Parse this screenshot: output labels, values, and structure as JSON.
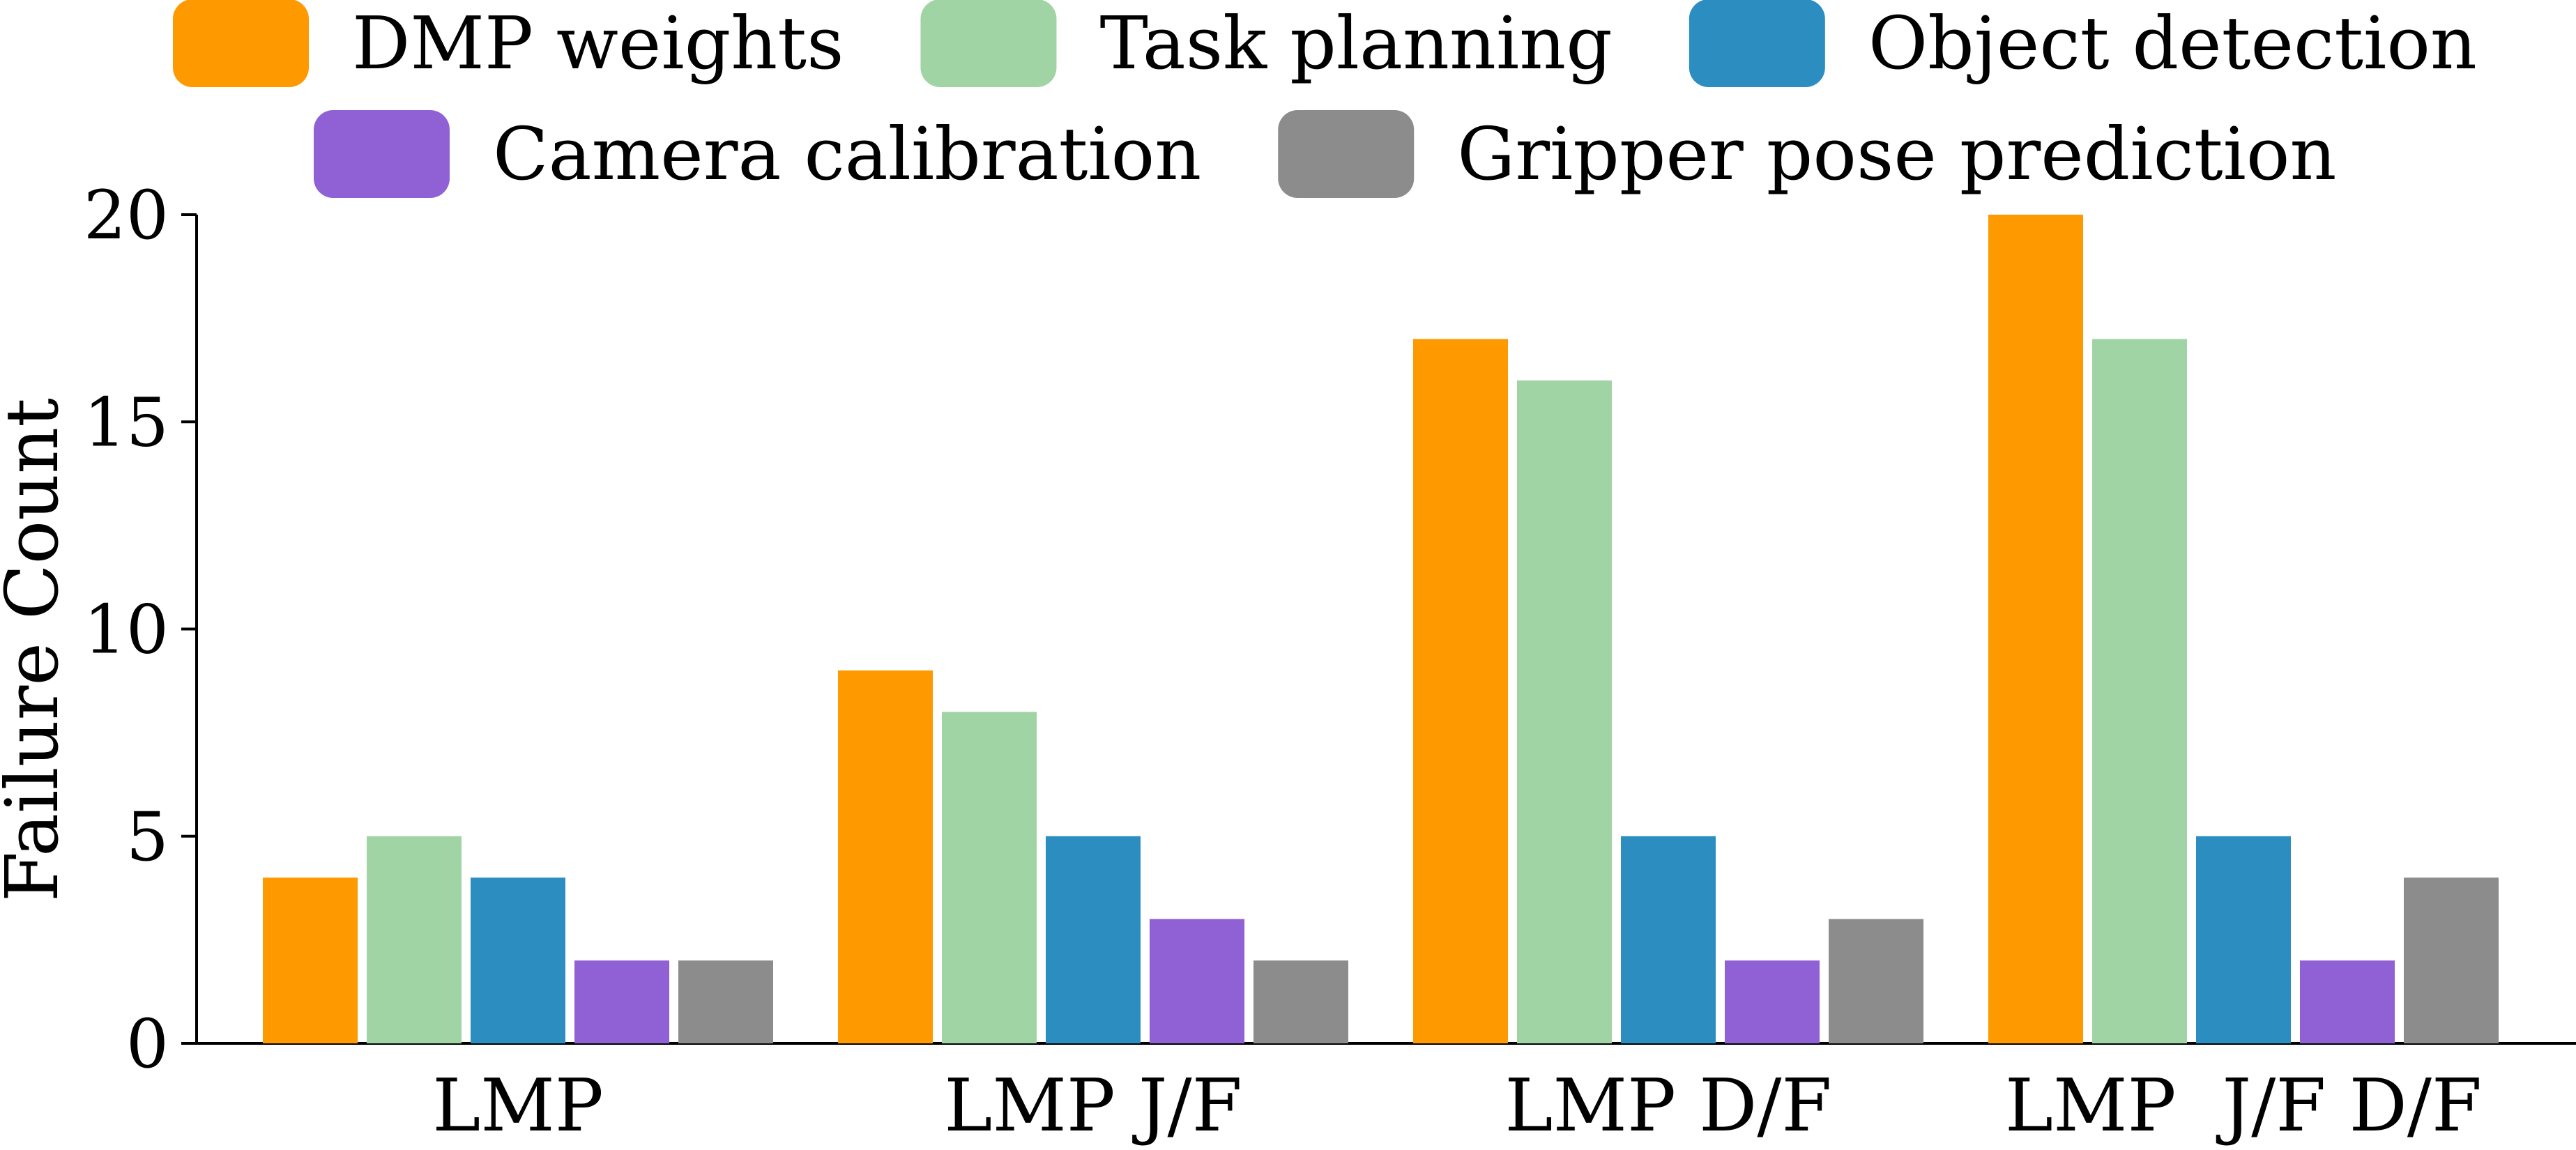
{
  "chart_data": {
    "type": "bar",
    "title": "",
    "xlabel": "",
    "ylabel": "Failure Count",
    "ylim": [
      0,
      20
    ],
    "yticks": [
      "0",
      "5",
      "10",
      "15",
      "20"
    ],
    "categories": [
      "LMP",
      "LMP J/F",
      "LMP D/F",
      "LMP  J/F D/F"
    ],
    "series": [
      {
        "name": "DMP weights",
        "color": "#FF9900",
        "values": [
          4,
          9,
          17,
          20
        ]
      },
      {
        "name": "Task planning",
        "color": "#A1D4A4",
        "values": [
          5,
          8,
          16,
          17
        ]
      },
      {
        "name": "Object detection",
        "color": "#2C8DC0",
        "values": [
          4,
          5,
          5,
          5
        ]
      },
      {
        "name": "Camera calibration",
        "color": "#8F61D5",
        "values": [
          2,
          3,
          2,
          2
        ]
      },
      {
        "name": "Gripper pose prediction",
        "color": "#8C8C8C",
        "values": [
          2,
          2,
          3,
          4
        ]
      }
    ],
    "legend_position": "top"
  }
}
